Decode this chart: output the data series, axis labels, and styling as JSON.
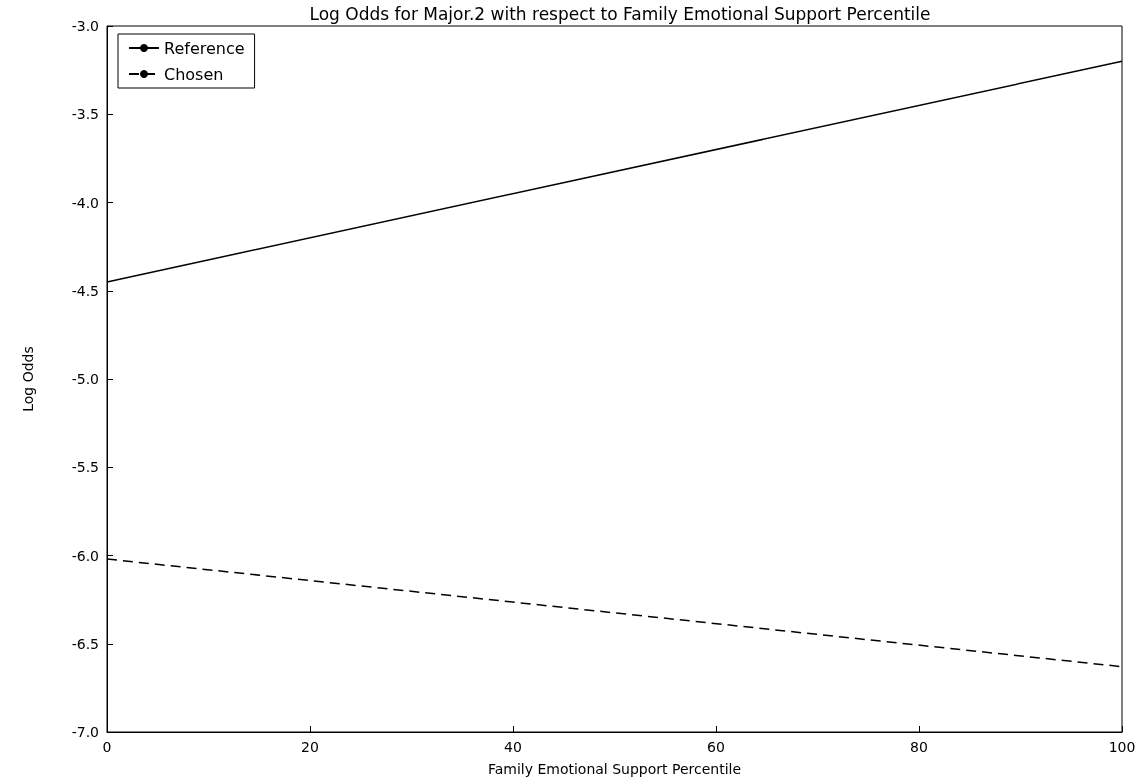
{
  "chart_data": {
    "type": "line",
    "title": "Log Odds for Major.2 with respect to Family Emotional Support Percentile",
    "xlabel": "Family Emotional Support Percentile",
    "ylabel": "Log Odds",
    "x": [
      0,
      100
    ],
    "series": [
      {
        "name": "Reference",
        "color": "#000000",
        "line_style": "solid",
        "values": [
          -4.45,
          -3.2
        ]
      },
      {
        "name": "Chosen",
        "color": "#000000",
        "line_style": "dashed",
        "values": [
          -6.02,
          -6.63
        ]
      }
    ],
    "xlim": [
      0,
      100
    ],
    "xticks": [
      0,
      20,
      40,
      60,
      80,
      100
    ],
    "ylim": [
      -7,
      -3
    ],
    "yticks": [
      {
        "value": -7,
        "label": "-7.0"
      },
      -6.5,
      {
        "value": -6,
        "label": "-6.0"
      },
      -5.5,
      {
        "value": -5,
        "label": "-5.0"
      },
      -4.5,
      {
        "value": -4,
        "label": "-4.0"
      },
      -3.5,
      {
        "value": -3,
        "label": "-3.0"
      }
    ],
    "grid": false,
    "legend": "top left",
    "marker": "none"
  }
}
